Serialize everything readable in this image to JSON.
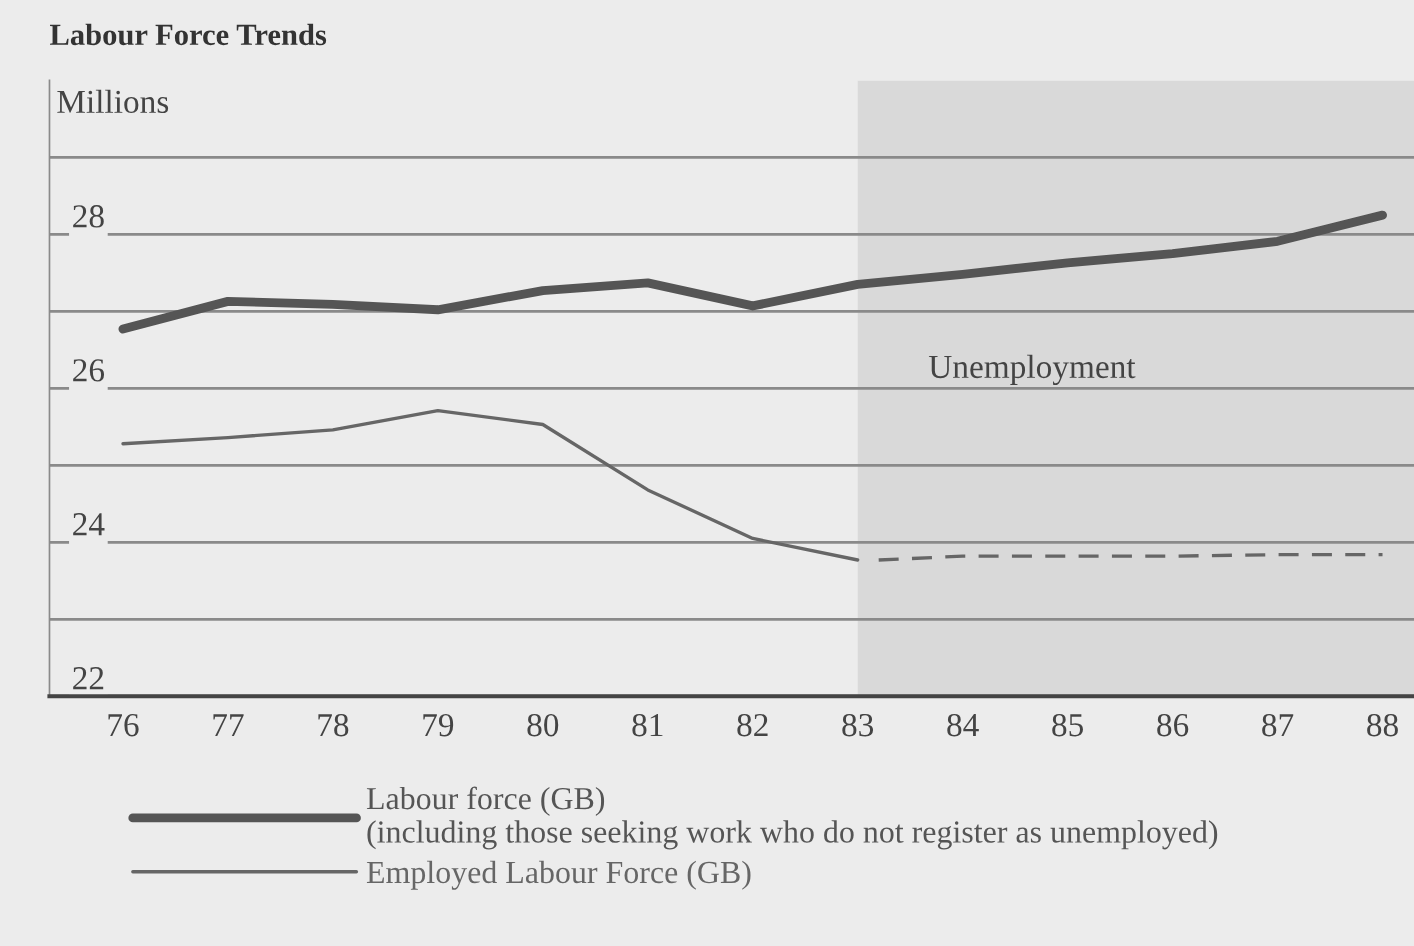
{
  "chart_data": {
    "type": "line",
    "title": "Labour Force Trends",
    "ylabel": "Millions",
    "x": [
      76,
      77,
      78,
      79,
      80,
      81,
      82,
      83,
      84,
      85,
      86,
      87,
      88
    ],
    "series": [
      {
        "name": "Labour force (GB)\n(including those seeking work who do not register as unemployed)",
        "color": "#555555",
        "values": [
          26.77,
          27.13,
          27.09,
          27.02,
          27.27,
          27.37,
          27.07,
          27.35,
          27.48,
          27.63,
          27.75,
          27.91,
          28.25
        ]
      },
      {
        "name": "Employed Labour Force (GB)",
        "color": "#666666",
        "values": [
          25.28,
          25.36,
          25.46,
          25.71,
          25.53,
          24.68,
          24.05,
          23.77,
          null,
          null,
          null,
          null,
          null
        ]
      },
      {
        "color": "#666666",
        "line_style": "dashed",
        "x": [
          83.2,
          84,
          85,
          86,
          87,
          88
        ],
        "values": [
          23.77,
          23.82,
          23.82,
          23.82,
          23.84,
          23.84
        ]
      }
    ],
    "xlim": [
      75.3,
      88.3
    ],
    "xticks": [
      76,
      77,
      78,
      79,
      80,
      81,
      82,
      83,
      84,
      85,
      86,
      87,
      88
    ],
    "ylim": [
      22,
      30
    ],
    "yticks": [
      22,
      {
        "value": 23,
        "label": null
      },
      24,
      {
        "value": 25,
        "label": null
      },
      26,
      {
        "value": 27,
        "label": null
      },
      28,
      {
        "value": 29,
        "label": null
      }
    ],
    "bands": [
      {
        "axis": "x",
        "from": 83,
        "to": 88.3,
        "color": "#d9d9d9"
      }
    ],
    "annotations": [
      "Unemployment"
    ],
    "grid": "y",
    "legend": "bottom",
    "marker": "none",
    "line_style": "solid"
  }
}
